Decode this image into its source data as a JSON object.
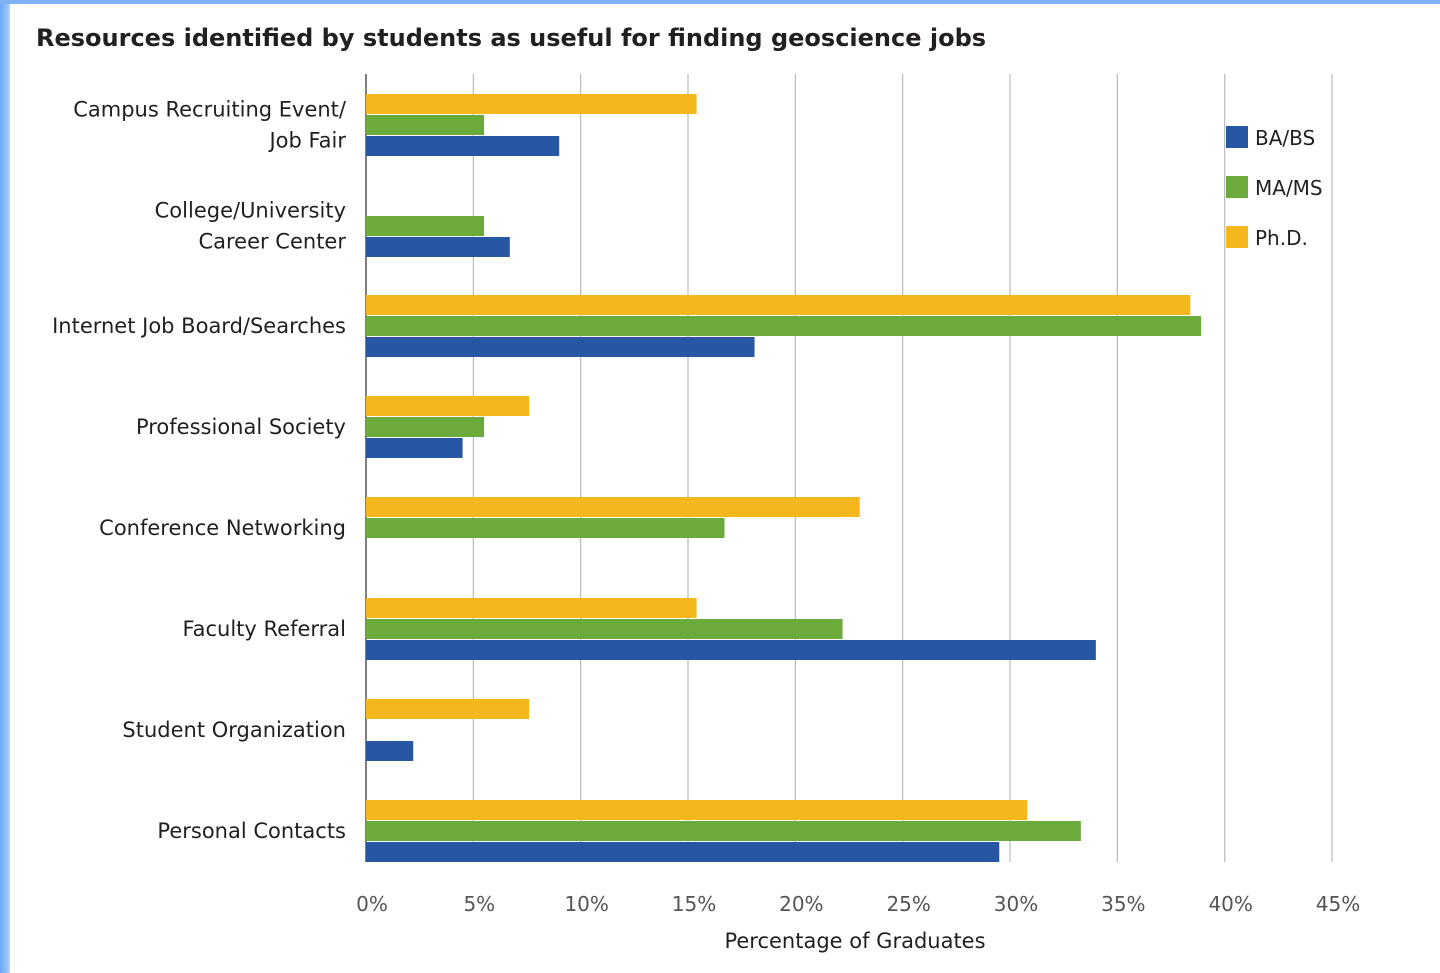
{
  "chart_data": {
    "type": "bar",
    "orientation": "horizontal",
    "title": "Resources identified by students as useful for finding geoscience jobs",
    "xlabel": "Percentage of Graduates",
    "xlim": [
      0,
      45
    ],
    "x_ticks": [
      "0%",
      "5%",
      "10%",
      "15%",
      "20%",
      "25%",
      "30%",
      "35%",
      "40%",
      "45%"
    ],
    "grid": true,
    "legend_position": "top-right",
    "categories": [
      [
        "Campus Recruiting Event/",
        "Job Fair"
      ],
      [
        "College/University",
        "Career Center"
      ],
      [
        "Internet Job Board/Searches"
      ],
      [
        "Professional Society"
      ],
      [
        "Conference Networking"
      ],
      [
        "Faculty Referral"
      ],
      [
        "Student Organization"
      ],
      [
        "Personal Contacts"
      ]
    ],
    "series": [
      {
        "name": "Ph.D.",
        "color": "#f5b81c",
        "values": [
          15.4,
          0,
          38.4,
          7.6,
          23.0,
          15.4,
          7.6,
          30.8
        ]
      },
      {
        "name": "MA/MS",
        "color": "#6aab3c",
        "values": [
          5.5,
          5.5,
          38.9,
          5.5,
          16.7,
          22.2,
          0,
          33.3
        ]
      },
      {
        "name": "BA/BS",
        "color": "#2756a2",
        "values": [
          9.0,
          6.7,
          18.1,
          4.5,
          0,
          34.0,
          2.2,
          29.5
        ]
      }
    ],
    "legend_order": [
      "BA/BS",
      "MA/MS",
      "Ph.D."
    ]
  }
}
